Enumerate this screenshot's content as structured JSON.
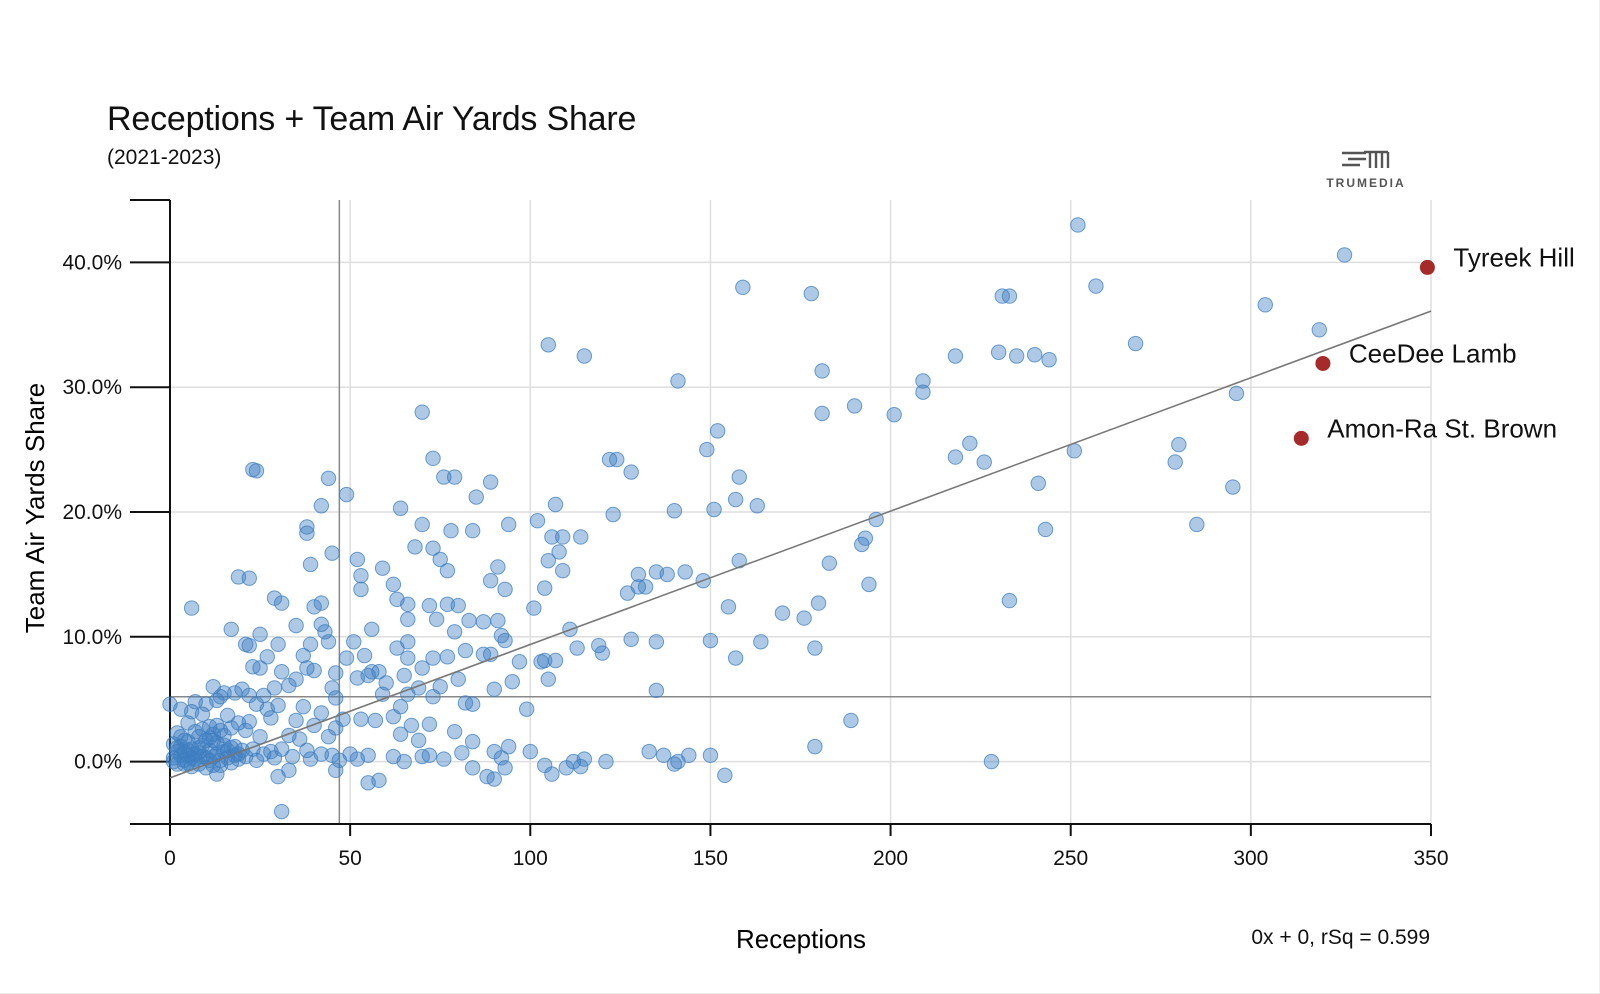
{
  "header": {
    "title": "Receptions + Team Air Yards Share",
    "subtitle": "(2021-2023)"
  },
  "brand": {
    "logo_text": "TRUMEDIA",
    "icon": "trumedia-logo-icon"
  },
  "footer": {
    "equation": "0x + 0, rSq = 0.599"
  },
  "colors": {
    "point": "#3f7fc0",
    "highlight": "#a62a2a",
    "trend": "#777777",
    "grid": "#dedede"
  },
  "chart_data": {
    "type": "scatter",
    "title": "Receptions + Team Air Yards Share",
    "subtitle": "(2021-2023)",
    "xlabel": "Receptions",
    "ylabel": "Team Air Yards Share",
    "xlim": [
      0,
      350
    ],
    "ylim": [
      -5,
      45
    ],
    "x_ticks": [
      0,
      50,
      100,
      150,
      200,
      250,
      300,
      350
    ],
    "y_ticks": [
      0,
      10,
      20,
      30,
      40
    ],
    "y_tick_labels": [
      "0.0%",
      "10.0%",
      "20.0%",
      "30.0%",
      "40.0%"
    ],
    "grid": true,
    "reference_lines": {
      "x_mean": 47,
      "y_mean": 5.2
    },
    "trendline": {
      "x": [
        0,
        350
      ],
      "y": [
        -1.3,
        36.1
      ]
    },
    "highlighted": [
      {
        "label": "Tyreek Hill",
        "x": 349,
        "y": 39.6
      },
      {
        "label": "CeeDee Lamb",
        "x": 320,
        "y": 31.9
      },
      {
        "label": "Amon-Ra St. Brown",
        "x": 314,
        "y": 25.9
      }
    ],
    "points": [
      [
        252,
        43.0
      ],
      [
        326,
        40.6
      ],
      [
        159,
        38.0
      ],
      [
        178,
        37.5
      ],
      [
        231,
        37.3
      ],
      [
        233,
        37.3
      ],
      [
        257,
        38.1
      ],
      [
        304,
        36.6
      ],
      [
        319,
        34.6
      ],
      [
        268,
        33.5
      ],
      [
        105,
        33.4
      ],
      [
        115,
        32.5
      ],
      [
        218,
        32.5
      ],
      [
        230,
        32.8
      ],
      [
        235,
        32.5
      ],
      [
        240,
        32.6
      ],
      [
        244,
        32.2
      ],
      [
        181,
        31.3
      ],
      [
        141,
        30.5
      ],
      [
        209,
        30.5
      ],
      [
        209,
        29.6
      ],
      [
        296,
        29.5
      ],
      [
        190,
        28.5
      ],
      [
        181,
        27.9
      ],
      [
        201,
        27.8
      ],
      [
        70,
        28.0
      ],
      [
        152,
        26.5
      ],
      [
        222,
        25.5
      ],
      [
        280,
        25.4
      ],
      [
        251,
        24.9
      ],
      [
        149,
        25.0
      ],
      [
        218,
        24.4
      ],
      [
        226,
        24.0
      ],
      [
        279,
        24.0
      ],
      [
        122,
        24.2
      ],
      [
        124,
        24.2
      ],
      [
        73,
        24.3
      ],
      [
        23,
        23.4
      ],
      [
        24,
        23.3
      ],
      [
        128,
        23.2
      ],
      [
        76,
        22.8
      ],
      [
        79,
        22.8
      ],
      [
        89,
        22.4
      ],
      [
        158,
        22.8
      ],
      [
        44,
        22.7
      ],
      [
        241,
        22.3
      ],
      [
        295,
        22.0
      ],
      [
        85,
        21.2
      ],
      [
        49,
        21.4
      ],
      [
        157,
        21.0
      ],
      [
        163,
        20.5
      ],
      [
        107,
        20.6
      ],
      [
        42,
        20.5
      ],
      [
        64,
        20.3
      ],
      [
        140,
        20.1
      ],
      [
        151,
        20.2
      ],
      [
        123,
        19.8
      ],
      [
        196,
        19.4
      ],
      [
        102,
        19.3
      ],
      [
        285,
        19.0
      ],
      [
        243,
        18.6
      ],
      [
        70,
        19.0
      ],
      [
        94,
        19.0
      ],
      [
        38,
        18.8
      ],
      [
        38,
        18.3
      ],
      [
        78,
        18.5
      ],
      [
        84,
        18.5
      ],
      [
        106,
        18.0
      ],
      [
        109,
        18.0
      ],
      [
        114,
        18.0
      ],
      [
        193,
        17.9
      ],
      [
        192,
        17.4
      ],
      [
        68,
        17.2
      ],
      [
        73,
        17.1
      ],
      [
        108,
        16.8
      ],
      [
        45,
        16.7
      ],
      [
        52,
        16.2
      ],
      [
        75,
        16.2
      ],
      [
        105,
        16.1
      ],
      [
        158,
        16.1
      ],
      [
        39,
        15.8
      ],
      [
        59,
        15.5
      ],
      [
        109,
        15.3
      ],
      [
        77,
        15.3
      ],
      [
        91,
        15.6
      ],
      [
        183,
        15.9
      ],
      [
        130,
        15.0
      ],
      [
        135,
        15.2
      ],
      [
        138,
        15.0
      ],
      [
        143,
        15.2
      ],
      [
        148,
        14.5
      ],
      [
        53,
        14.9
      ],
      [
        19,
        14.8
      ],
      [
        22,
        14.7
      ],
      [
        194,
        14.2
      ],
      [
        89,
        14.5
      ],
      [
        93,
        13.8
      ],
      [
        62,
        14.2
      ],
      [
        104,
        13.9
      ],
      [
        130,
        14.0
      ],
      [
        132,
        14.0
      ],
      [
        127,
        13.5
      ],
      [
        53,
        13.8
      ],
      [
        29,
        13.1
      ],
      [
        31,
        12.7
      ],
      [
        233,
        12.9
      ],
      [
        180,
        12.7
      ],
      [
        63,
        13.0
      ],
      [
        66,
        12.6
      ],
      [
        72,
        12.5
      ],
      [
        77,
        12.6
      ],
      [
        80,
        12.5
      ],
      [
        42,
        12.7
      ],
      [
        40,
        12.4
      ],
      [
        6,
        12.3
      ],
      [
        155,
        12.4
      ],
      [
        101,
        12.3
      ],
      [
        170,
        11.9
      ],
      [
        176,
        11.5
      ],
      [
        66,
        11.4
      ],
      [
        74,
        11.4
      ],
      [
        83,
        11.3
      ],
      [
        91,
        11.3
      ],
      [
        87,
        11.2
      ],
      [
        42,
        11.0
      ],
      [
        35,
        10.9
      ],
      [
        56,
        10.6
      ],
      [
        111,
        10.6
      ],
      [
        43,
        10.4
      ],
      [
        17,
        10.6
      ],
      [
        25,
        10.2
      ],
      [
        79,
        10.4
      ],
      [
        92,
        10.1
      ],
      [
        128,
        9.8
      ],
      [
        150,
        9.7
      ],
      [
        93,
        9.7
      ],
      [
        44,
        9.6
      ],
      [
        51,
        9.6
      ],
      [
        66,
        9.6
      ],
      [
        21,
        9.4
      ],
      [
        22,
        9.3
      ],
      [
        30,
        9.4
      ],
      [
        39,
        9.4
      ],
      [
        119,
        9.3
      ],
      [
        120,
        8.7
      ],
      [
        113,
        9.1
      ],
      [
        164,
        9.6
      ],
      [
        135,
        9.6
      ],
      [
        179,
        9.1
      ],
      [
        104,
        8.1
      ],
      [
        107,
        8.1
      ],
      [
        157,
        8.3
      ],
      [
        82,
        8.9
      ],
      [
        87,
        8.6
      ],
      [
        63,
        9.1
      ],
      [
        66,
        8.3
      ],
      [
        54,
        8.5
      ],
      [
        49,
        8.3
      ],
      [
        27,
        8.4
      ],
      [
        37,
        8.5
      ],
      [
        38,
        7.5
      ],
      [
        40,
        7.3
      ],
      [
        46,
        7.1
      ],
      [
        56,
        7.2
      ],
      [
        58,
        7.2
      ],
      [
        65,
        6.9
      ],
      [
        70,
        7.5
      ],
      [
        73,
        8.3
      ],
      [
        77,
        8.4
      ],
      [
        89,
        8.6
      ],
      [
        97,
        8.0
      ],
      [
        103,
        8.0
      ],
      [
        23,
        7.6
      ],
      [
        25,
        7.5
      ],
      [
        31,
        7.2
      ],
      [
        35,
        6.6
      ],
      [
        20,
        5.8
      ],
      [
        22,
        5.3
      ],
      [
        26,
        5.3
      ],
      [
        29,
        5.9
      ],
      [
        33,
        6.1
      ],
      [
        45,
        5.9
      ],
      [
        52,
        6.7
      ],
      [
        55,
        6.9
      ],
      [
        60,
        6.3
      ],
      [
        66,
        5.4
      ],
      [
        69,
        5.9
      ],
      [
        75,
        6.0
      ],
      [
        80,
        6.6
      ],
      [
        90,
        5.8
      ],
      [
        95,
        6.4
      ],
      [
        105,
        6.6
      ],
      [
        12,
        6.0
      ],
      [
        14,
        5.2
      ],
      [
        18,
        5.5
      ],
      [
        7,
        4.8
      ],
      [
        10,
        4.6
      ],
      [
        13,
        4.9
      ],
      [
        15,
        5.5
      ],
      [
        24,
        4.6
      ],
      [
        27,
        4.2
      ],
      [
        30,
        4.5
      ],
      [
        37,
        4.4
      ],
      [
        42,
        3.9
      ],
      [
        46,
        5.1
      ],
      [
        59,
        5.4
      ],
      [
        64,
        4.4
      ],
      [
        73,
        5.2
      ],
      [
        82,
        4.7
      ],
      [
        84,
        4.6
      ],
      [
        99,
        4.2
      ],
      [
        135,
        5.7
      ],
      [
        3,
        4.2
      ],
      [
        6,
        4.0
      ],
      [
        9,
        3.8
      ],
      [
        16,
        3.7
      ],
      [
        19,
        3.1
      ],
      [
        22,
        3.2
      ],
      [
        28,
        3.5
      ],
      [
        35,
        3.3
      ],
      [
        40,
        2.9
      ],
      [
        48,
        3.4
      ],
      [
        53,
        3.4
      ],
      [
        57,
        3.3
      ],
      [
        62,
        3.6
      ],
      [
        67,
        2.9
      ],
      [
        72,
        3.0
      ],
      [
        189,
        3.3
      ],
      [
        0,
        4.6
      ],
      [
        5,
        3.1
      ],
      [
        11,
        2.8
      ],
      [
        14,
        2.5
      ],
      [
        21,
        2.5
      ],
      [
        25,
        2.0
      ],
      [
        33,
        2.1
      ],
      [
        36,
        1.8
      ],
      [
        44,
        2.0
      ],
      [
        46,
        2.7
      ],
      [
        64,
        2.2
      ],
      [
        69,
        1.7
      ],
      [
        79,
        2.4
      ],
      [
        84,
        1.6
      ],
      [
        94,
        1.2
      ],
      [
        2,
        2.3
      ],
      [
        8,
        2.0
      ],
      [
        12,
        1.7
      ],
      [
        15,
        1.3
      ],
      [
        18,
        1.2
      ],
      [
        23,
        1.0
      ],
      [
        28,
        0.8
      ],
      [
        31,
        1.0
      ],
      [
        38,
        0.9
      ],
      [
        45,
        0.5
      ],
      [
        50,
        0.6
      ],
      [
        55,
        0.5
      ],
      [
        62,
        0.4
      ],
      [
        72,
        0.5
      ],
      [
        81,
        0.7
      ],
      [
        90,
        0.8
      ],
      [
        92,
        0.3
      ],
      [
        100,
        0.8
      ],
      [
        133,
        0.8
      ],
      [
        137,
        0.5
      ],
      [
        141,
        0.0
      ],
      [
        144,
        0.5
      ],
      [
        150,
        0.5
      ],
      [
        179,
        1.2
      ],
      [
        228,
        0.0
      ],
      [
        104,
        -0.3
      ],
      [
        112,
        0.0
      ],
      [
        115,
        0.2
      ],
      [
        121,
        0.0
      ],
      [
        110,
        -0.5
      ],
      [
        106,
        -1.0
      ],
      [
        114,
        -0.4
      ],
      [
        76,
        0.2
      ],
      [
        84,
        -0.5
      ],
      [
        88,
        -1.2
      ],
      [
        90,
        -1.4
      ],
      [
        93,
        -0.5
      ],
      [
        58,
        -1.5
      ],
      [
        55,
        -1.7
      ],
      [
        46,
        -0.7
      ],
      [
        33,
        -0.7
      ],
      [
        30,
        -1.2
      ],
      [
        31,
        -4.0
      ],
      [
        13,
        -1.0
      ],
      [
        10,
        -0.5
      ],
      [
        4,
        -0.2
      ],
      [
        1,
        0.3
      ],
      [
        2,
        0.8
      ],
      [
        3,
        1.2
      ],
      [
        4,
        0.1
      ],
      [
        5,
        0.5
      ],
      [
        6,
        1.0
      ],
      [
        7,
        0.2
      ],
      [
        8,
        0.7
      ],
      [
        9,
        1.3
      ],
      [
        10,
        0.3
      ],
      [
        11,
        0.9
      ],
      [
        12,
        0.4
      ],
      [
        13,
        1.5
      ],
      [
        14,
        0.1
      ],
      [
        15,
        0.8
      ],
      [
        16,
        0.3
      ],
      [
        17,
        1.1
      ],
      [
        18,
        0.5
      ],
      [
        19,
        0.2
      ],
      [
        20,
        0.9
      ],
      [
        21,
        0.4
      ],
      [
        24,
        0.1
      ],
      [
        26,
        0.6
      ],
      [
        29,
        0.3
      ],
      [
        34,
        0.4
      ],
      [
        39,
        0.2
      ],
      [
        42,
        0.6
      ],
      [
        47,
        0.1
      ],
      [
        52,
        0.2
      ],
      [
        154,
        -1.1
      ],
      [
        140,
        -0.2
      ],
      [
        65,
        0.0
      ],
      [
        70,
        0.4
      ],
      [
        1,
        0.0
      ],
      [
        2,
        -0.2
      ],
      [
        3,
        0.5
      ],
      [
        4,
        0.8
      ],
      [
        5,
        -0.1
      ],
      [
        6,
        0.3
      ],
      [
        7,
        0.6
      ],
      [
        8,
        -0.2
      ],
      [
        9,
        0.4
      ],
      [
        10,
        1.7
      ],
      [
        11,
        0.1
      ],
      [
        12,
        2.2
      ],
      [
        13,
        0.6
      ],
      [
        14,
        -0.3
      ],
      [
        16,
        0.9
      ],
      [
        17,
        -0.1
      ],
      [
        19,
        0.6
      ],
      [
        1,
        1.4
      ],
      [
        3,
        2.0
      ],
      [
        5,
        1.6
      ],
      [
        7,
        2.4
      ],
      [
        9,
        2.6
      ],
      [
        11,
        1.9
      ],
      [
        13,
        2.9
      ],
      [
        15,
        2.1
      ],
      [
        17,
        2.7
      ],
      [
        5,
        0.9
      ],
      [
        8,
        1.1
      ],
      [
        6,
        -0.4
      ],
      [
        2,
        1.1
      ],
      [
        4,
        1.7
      ],
      [
        12,
        -0.3
      ]
    ]
  }
}
